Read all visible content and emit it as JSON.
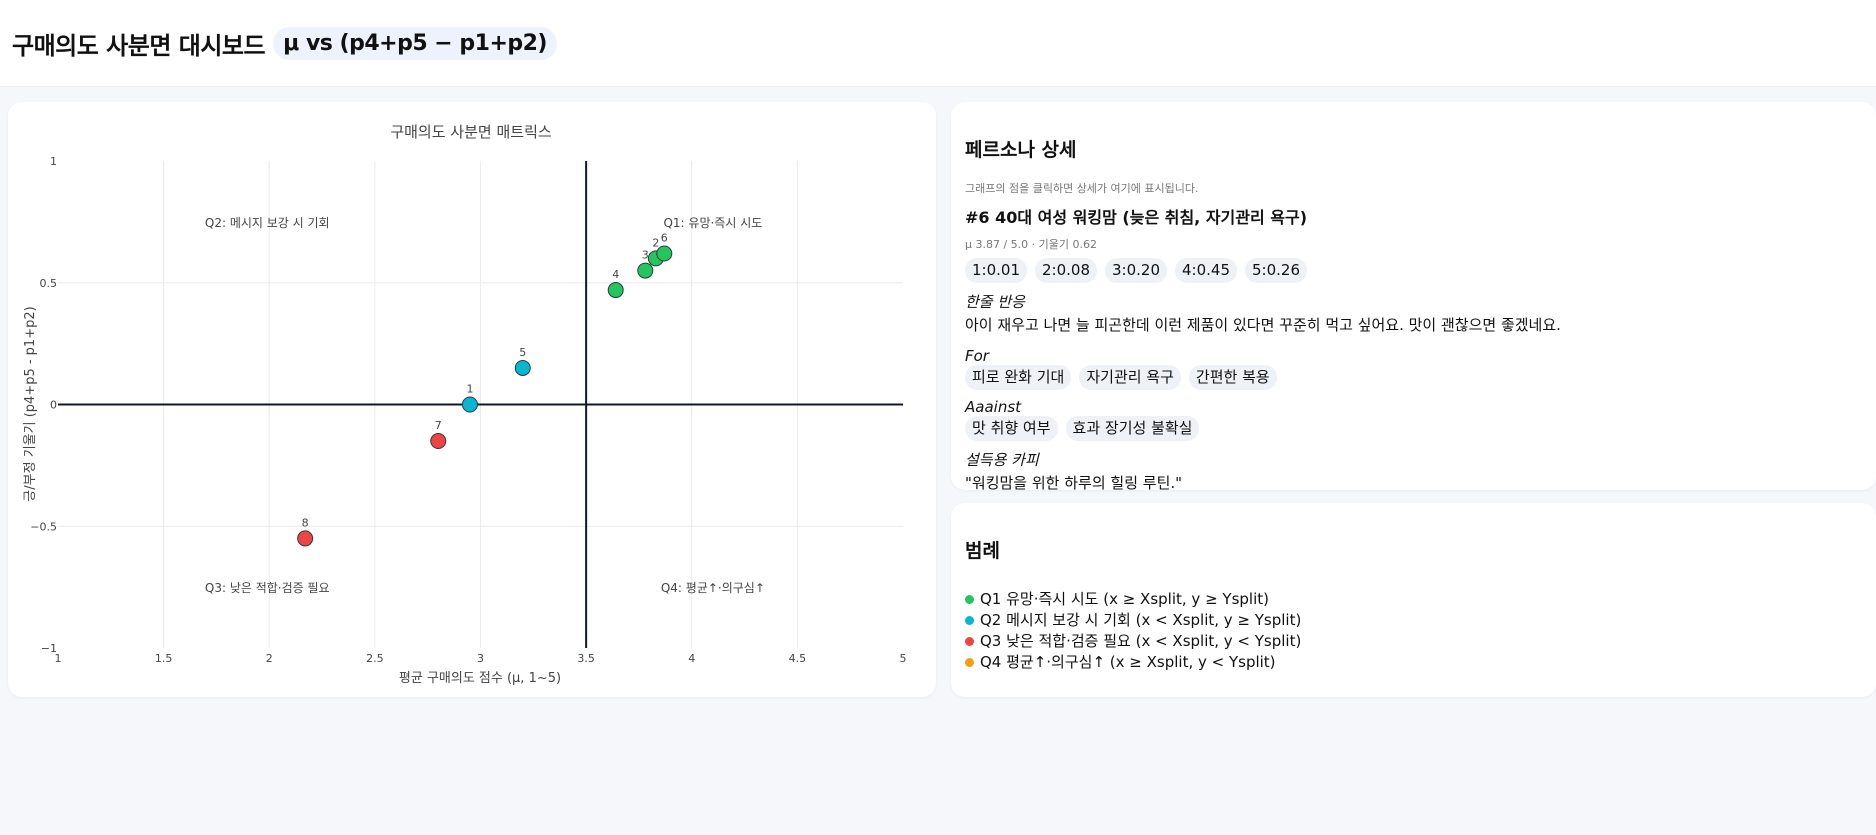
{
  "header": {
    "title": "구매의도 사분면 대시보드",
    "formula_pill": "μ vs (p4+p5 − p1+p2)"
  },
  "colors": {
    "q1": "#22c55e",
    "q2": "#06b6d4",
    "q3": "#ef4444",
    "q4": "#f59e0b",
    "split_line": "#111827",
    "grid": "#ececec",
    "pill_bg": "#eef2fd"
  },
  "chart_data": {
    "type": "scatter",
    "title": "구매의도 사분면 매트릭스",
    "xlabel": "평균 구매의도 점수 (μ, 1~5)",
    "ylabel": "긍/부정 기울기 (p4+p5 - p1+p2)",
    "xlim": [
      1,
      5
    ],
    "ylim": [
      -1,
      1
    ],
    "x_ticks": [
      "1",
      "1.5",
      "2",
      "2.5",
      "3",
      "3.5",
      "4",
      "4.5",
      "5"
    ],
    "y_ticks": [
      "1",
      "0.5",
      "0",
      "−0.5",
      "−1"
    ],
    "grid": true,
    "x_split": 3.5,
    "y_split": 0,
    "quadrant_annotations": [
      {
        "label": "Q1: 유망·즉시 시도",
        "x": 4.1,
        "y": 0.75
      },
      {
        "label": "Q2: 메시지 보강 시 기회",
        "x": 2.0,
        "y": 0.75
      },
      {
        "label": "Q3: 낮은 적합·검증 필요",
        "x": 2.0,
        "y": -0.75
      },
      {
        "label": "Q4: 평균↑·의구심↑",
        "x": 4.1,
        "y": -0.75
      }
    ],
    "points": [
      {
        "id": "1",
        "x": 2.95,
        "y": 0.0,
        "quadrant": "q2"
      },
      {
        "id": "2",
        "x": 3.83,
        "y": 0.6,
        "quadrant": "q1"
      },
      {
        "id": "3",
        "x": 3.78,
        "y": 0.55,
        "quadrant": "q1"
      },
      {
        "id": "4",
        "x": 3.64,
        "y": 0.47,
        "quadrant": "q1"
      },
      {
        "id": "5",
        "x": 3.2,
        "y": 0.15,
        "quadrant": "q2"
      },
      {
        "id": "6",
        "x": 3.87,
        "y": 0.62,
        "quadrant": "q1"
      },
      {
        "id": "7",
        "x": 2.8,
        "y": -0.15,
        "quadrant": "q3"
      },
      {
        "id": "8",
        "x": 2.17,
        "y": -0.55,
        "quadrant": "q3"
      }
    ]
  },
  "detail": {
    "title": "페르소나 상세",
    "hint": "그래프의 점을 클릭하면 상세가 여기에 표시됩니다.",
    "persona_title": "#6 40대 여성 워킹맘 (늦은 취침, 자기관리 욕구)",
    "meta": "μ 3.87 / 5.0 · 기울기 0.62",
    "distribution": [
      "1:0.01",
      "2:0.08",
      "3:0.20",
      "4:0.45",
      "5:0.26"
    ],
    "reaction_label": "한줄 반응",
    "reaction_text": "아이 재우고 나면 늘 피곤한데 이런 제품이 있다면 꾸준히 먹고 싶어요. 맛이 괜찮으면 좋겠네요.",
    "for_label": "For",
    "for_items": [
      "피로 완화 기대",
      "자기관리 욕구",
      "간편한 복용"
    ],
    "against_label": "Aaainst",
    "against_items": [
      "맛 취향 여부",
      "효과 장기성 불확실"
    ],
    "copy_label": "설득용 카피",
    "copy_text": "\"워킹맘을 위한 하루의 힐링 루틴.\""
  },
  "legend": {
    "title": "범례",
    "items": [
      {
        "label": "Q1 유망·즉시 시도 (x ≥ Xsplit, y ≥ Ysplit)",
        "color": "#22c55e"
      },
      {
        "label": "Q2 메시지 보강 시 기회 (x < Xsplit, y ≥ Ysplit)",
        "color": "#06b6d4"
      },
      {
        "label": "Q3 낮은 적합·검증 필요 (x < Xsplit, y < Ysplit)",
        "color": "#ef4444"
      },
      {
        "label": "Q4 평균↑·의구심↑ (x ≥ Xsplit, y < Ysplit)",
        "color": "#f59e0b"
      }
    ]
  }
}
